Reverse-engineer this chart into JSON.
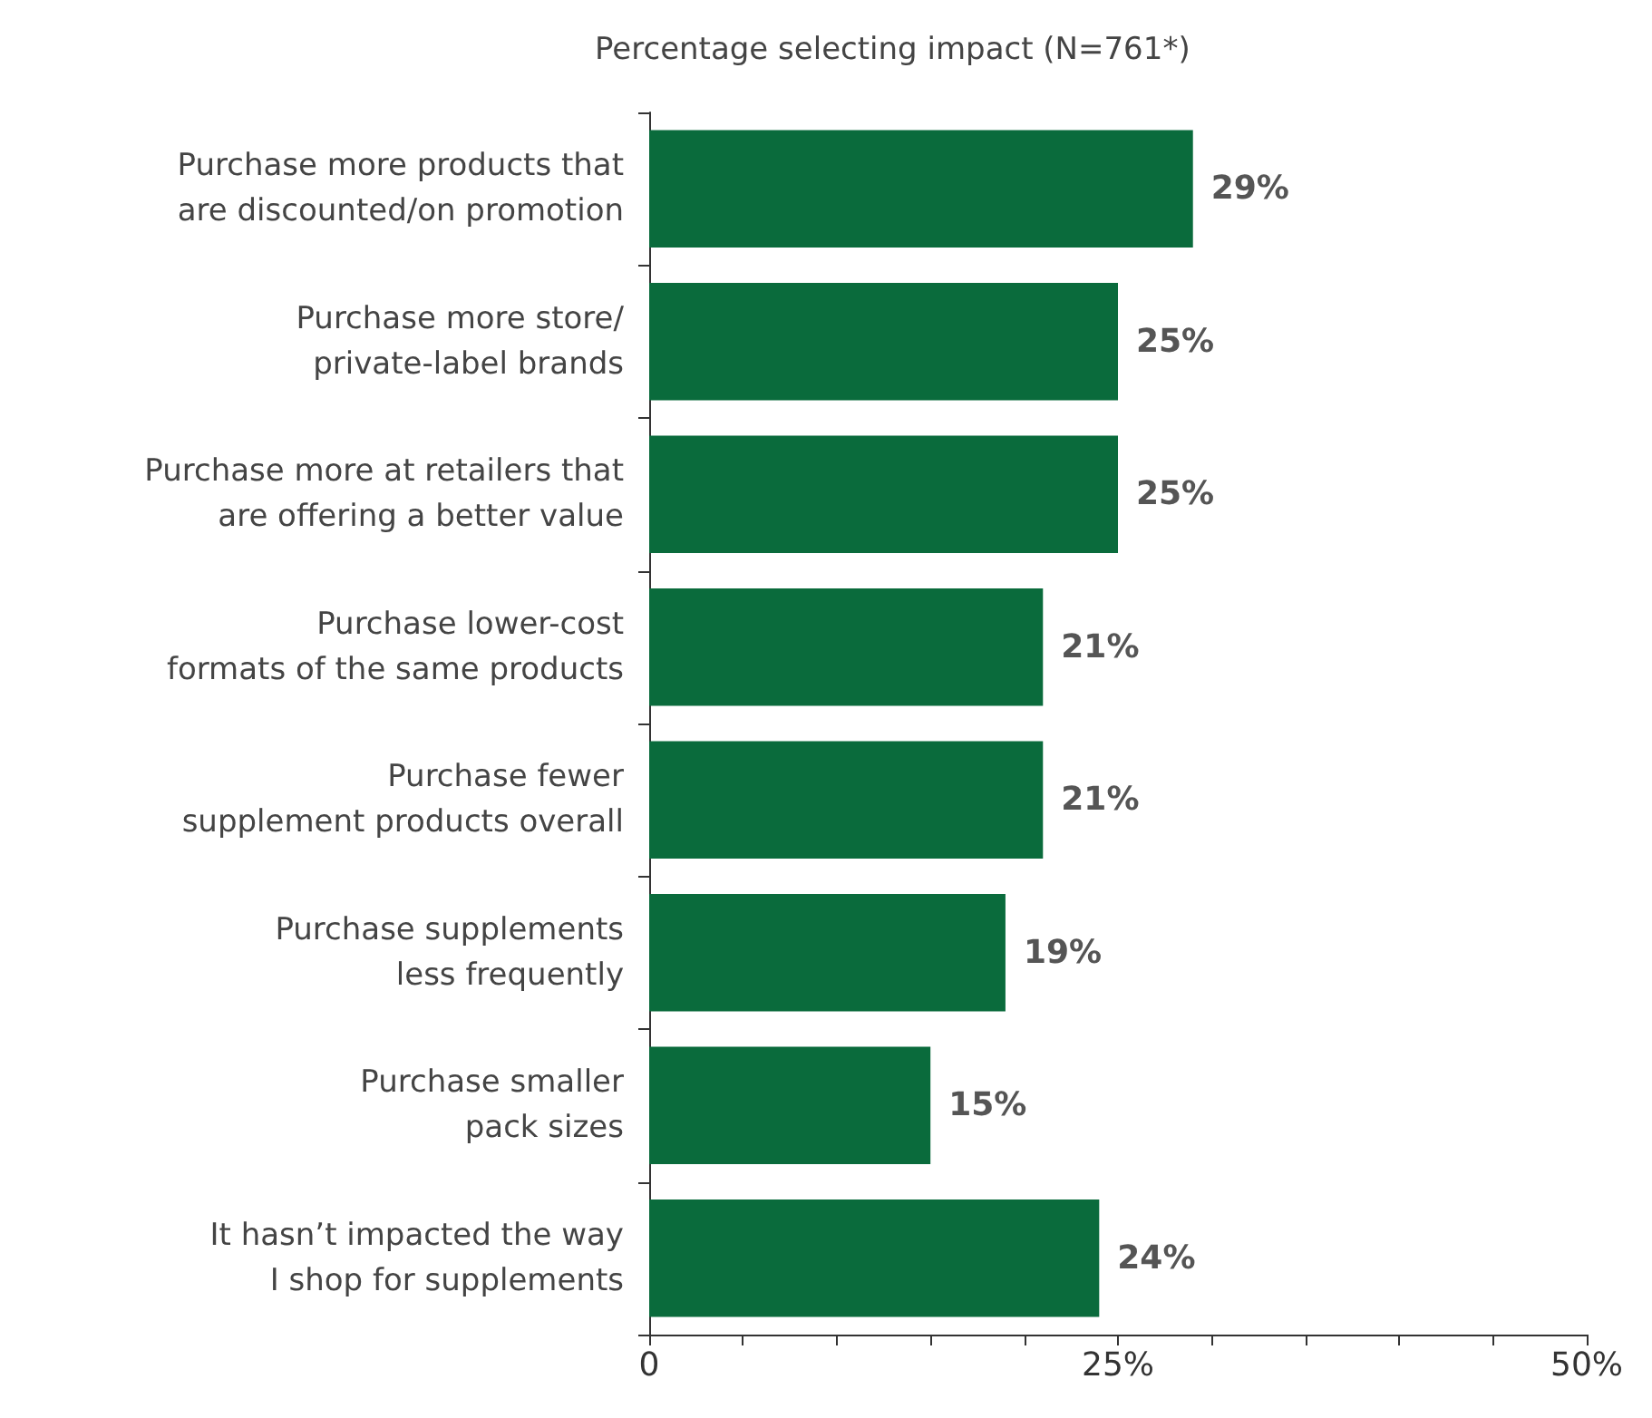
{
  "chart_data": {
    "type": "bar",
    "orientation": "horizontal",
    "title": "Percentage selecting impact (N=761*)",
    "categories": [
      "Purchase more products that\nare discounted/on promotion",
      "Purchase more store/\nprivate-label brands",
      "Purchase more at retailers that\nare offering a better value",
      "Purchase lower-cost\nformats of the same products",
      "Purchase fewer\nsupplement products overall",
      "Purchase supplements\nless frequently",
      "Purchase smaller\npack sizes",
      "It hasn’t impacted the way\nI shop for supplements"
    ],
    "values": [
      29,
      25,
      25,
      21,
      21,
      19,
      15,
      24
    ],
    "value_labels": [
      "29%",
      "25%",
      "25%",
      "21%",
      "21%",
      "19%",
      "15%",
      "24%"
    ],
    "color": "#0a6b3c",
    "xlim": [
      0,
      50
    ],
    "xticks": [
      0,
      {
        "value": 5,
        "label": null
      },
      {
        "value": 10,
        "label": null
      },
      {
        "value": 15,
        "label": null
      },
      {
        "value": 20,
        "label": null
      },
      {
        "value": 25,
        "label": "25%"
      },
      {
        "value": 30,
        "label": null
      },
      {
        "value": 35,
        "label": null
      },
      {
        "value": 40,
        "label": null
      },
      {
        "value": 45,
        "label": null
      },
      {
        "value": 50,
        "label": "50%"
      }
    ],
    "grid": false
  }
}
